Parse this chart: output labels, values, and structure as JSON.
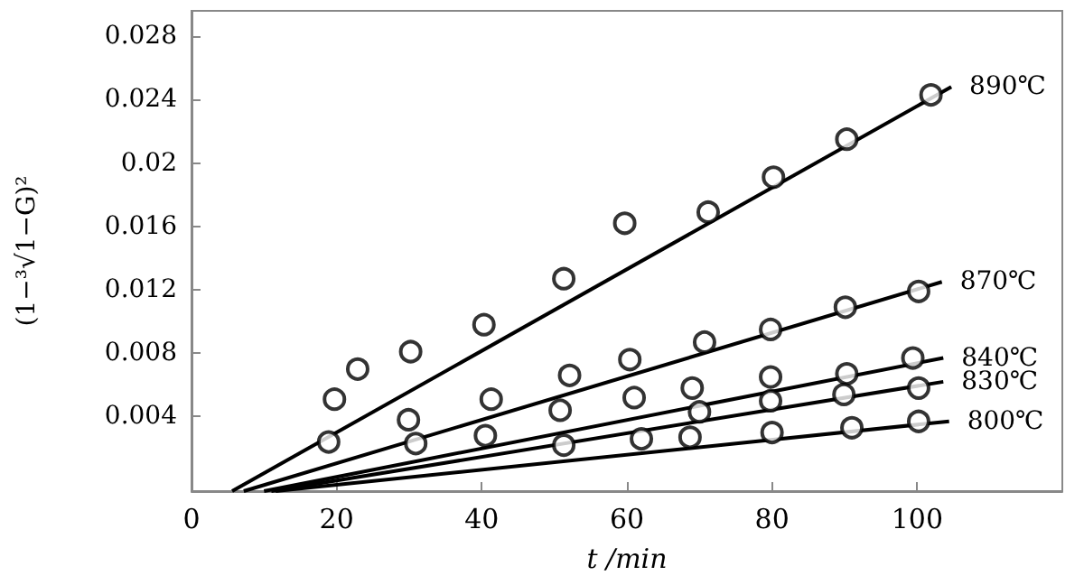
{
  "chart_data": {
    "type": "scatter",
    "xlabel": "t /min",
    "ylabel": "(1−³√1−G)²",
    "xlim": [
      0,
      120
    ],
    "xticks": [
      0,
      20,
      40,
      60,
      80,
      100
    ],
    "ylim": [
      -0.0007,
      0.0296
    ],
    "yticks": [
      0.004,
      0.008,
      0.012,
      0.016,
      0.02,
      0.024,
      0.028
    ],
    "grid": false,
    "legend": false,
    "series": [
      {
        "marker": "circle",
        "color": "#000000",
        "x": [
          19.7,
          22.9,
          30.2,
          40.3,
          51.3,
          59.7,
          71.2,
          80.2,
          90.3,
          101.9
        ],
        "values": [
          0.0051,
          0.007,
          0.0081,
          0.0098,
          0.0127,
          0.0162,
          0.0169,
          0.0191,
          0.0215,
          0.0243
        ]
      },
      {
        "marker": "circle",
        "color": "#000000",
        "x": [
          18.9,
          29.9,
          41.3,
          52.1,
          60.4,
          70.7,
          79.8,
          90.1,
          100.2
        ],
        "values": [
          0.0024,
          0.0038,
          0.0051,
          0.0066,
          0.0076,
          0.0087,
          0.0095,
          0.0109,
          0.0119
        ]
      },
      {
        "marker": "circle",
        "color": "#000000",
        "x": [
          50.8,
          61,
          69,
          79.8,
          90.3,
          99.4
        ],
        "values": [
          0.0044,
          0.0052,
          0.0058,
          0.0065,
          0.0067,
          0.0077
        ]
      },
      {
        "marker": "circle",
        "color": "#000000",
        "x": [
          30.9,
          40.5,
          70,
          79.8,
          89.9,
          100.2
        ],
        "values": [
          0.0023,
          0.0028,
          0.0043,
          0.005,
          0.0054,
          0.0058
        ]
      },
      {
        "marker": "circle",
        "color": "#000000",
        "x": [
          51.3,
          62,
          68.7,
          80,
          91,
          100.2
        ],
        "values": [
          0.0022,
          0.0026,
          0.0027,
          0.003,
          0.0033,
          0.0037
        ]
      },
      {
        "type": "line",
        "name": "890℃",
        "marker": "none",
        "color": "#000000",
        "x": [
          5.6,
          104.7
        ],
        "values": [
          -0.0007,
          0.0248
        ]
      },
      {
        "type": "line",
        "name": "870℃",
        "marker": "none",
        "color": "#000000",
        "x": [
          7.2,
          103.4
        ],
        "values": [
          -0.0007,
          0.0125
        ]
      },
      {
        "type": "line",
        "name": "840℃",
        "marker": "none",
        "color": "#000000",
        "x": [
          10,
          103.6
        ],
        "values": [
          -0.0007,
          0.0077
        ]
      },
      {
        "type": "line",
        "name": "830℃",
        "marker": "none",
        "color": "#000000",
        "x": [
          11,
          103.6
        ],
        "values": [
          -0.0007,
          0.0062
        ]
      },
      {
        "type": "line",
        "name": "800℃",
        "marker": "none",
        "color": "#000000",
        "x": [
          11.6,
          104.4
        ],
        "values": [
          -0.0007,
          0.0037
        ]
      }
    ]
  }
}
